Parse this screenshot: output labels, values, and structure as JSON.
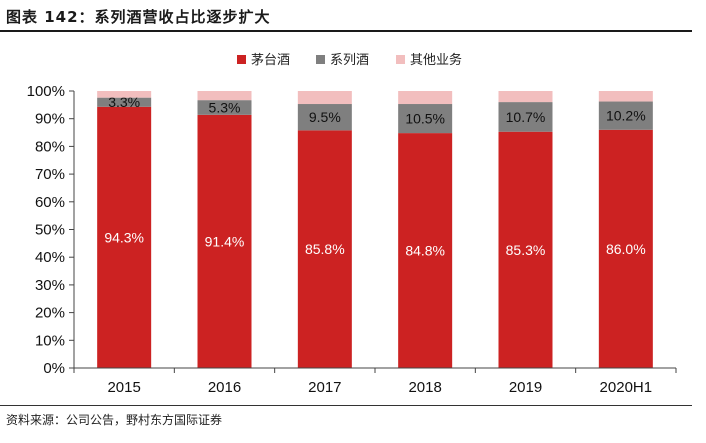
{
  "header": {
    "title": "图表 142：系列酒营收占比逐步扩大"
  },
  "footer": {
    "source": "资料来源：公司公告，野村东方国际证券"
  },
  "chart_data": {
    "type": "bar",
    "stacked": true,
    "percent": true,
    "categories": [
      "2015",
      "2016",
      "2017",
      "2018",
      "2019",
      "2020H1"
    ],
    "series": [
      {
        "name": "茅台酒",
        "color": "#CC2222",
        "values": [
          94.3,
          91.4,
          85.8,
          84.8,
          85.3,
          86.0
        ],
        "labels": [
          "94.3%",
          "91.4%",
          "85.8%",
          "84.8%",
          "85.3%",
          "86.0%"
        ],
        "label_color": "#ffffff"
      },
      {
        "name": "系列酒",
        "color": "#7F7F7F",
        "values": [
          3.3,
          5.3,
          9.5,
          10.5,
          10.7,
          10.2
        ],
        "labels": [
          "3.3%",
          "5.3%",
          "9.5%",
          "10.5%",
          "10.7%",
          "10.2%"
        ],
        "label_color": "#111111"
      },
      {
        "name": "其他业务",
        "color": "#F2BEBE",
        "values": [
          2.4,
          3.3,
          4.7,
          4.7,
          4.0,
          3.8
        ]
      }
    ],
    "ylim": [
      0,
      100
    ],
    "yticks": [
      "0%",
      "10%",
      "20%",
      "30%",
      "40%",
      "50%",
      "60%",
      "70%",
      "80%",
      "90%",
      "100%"
    ],
    "legend_position": "top-center",
    "grid": false
  }
}
